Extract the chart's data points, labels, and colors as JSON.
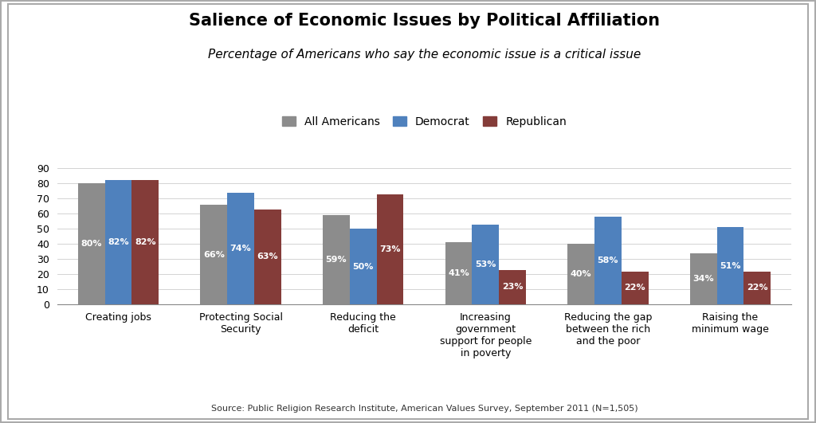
{
  "title": "Salience of Economic Issues by Political Affiliation",
  "subtitle": "Percentage of Americans who say the economic issue is a critical issue",
  "source": "Source: Public Religion Research Institute, American Values Survey, September 2011 (N=1,505)",
  "categories": [
    "Creating jobs",
    "Protecting Social\nSecurity",
    "Reducing the\ndeficit",
    "Increasing\ngovernment\nsupport for people\nin poverty",
    "Reducing the gap\nbetween the rich\nand the poor",
    "Raising the\nminimum wage"
  ],
  "series": {
    "All Americans": [
      80,
      66,
      59,
      41,
      40,
      34
    ],
    "Democrat": [
      82,
      74,
      50,
      53,
      58,
      51
    ],
    "Republican": [
      82,
      63,
      73,
      23,
      22,
      22
    ]
  },
  "colors": {
    "All Americans": "#8c8c8c",
    "Democrat": "#4f81bd",
    "Republican": "#843c39"
  },
  "ylim": [
    0,
    95
  ],
  "yticks": [
    0,
    10,
    20,
    30,
    40,
    50,
    60,
    70,
    80,
    90
  ],
  "bar_width": 0.22,
  "background_color": "#ffffff",
  "title_fontsize": 15,
  "subtitle_fontsize": 11,
  "label_fontsize": 8,
  "tick_fontsize": 9,
  "legend_fontsize": 10,
  "source_fontsize": 8
}
